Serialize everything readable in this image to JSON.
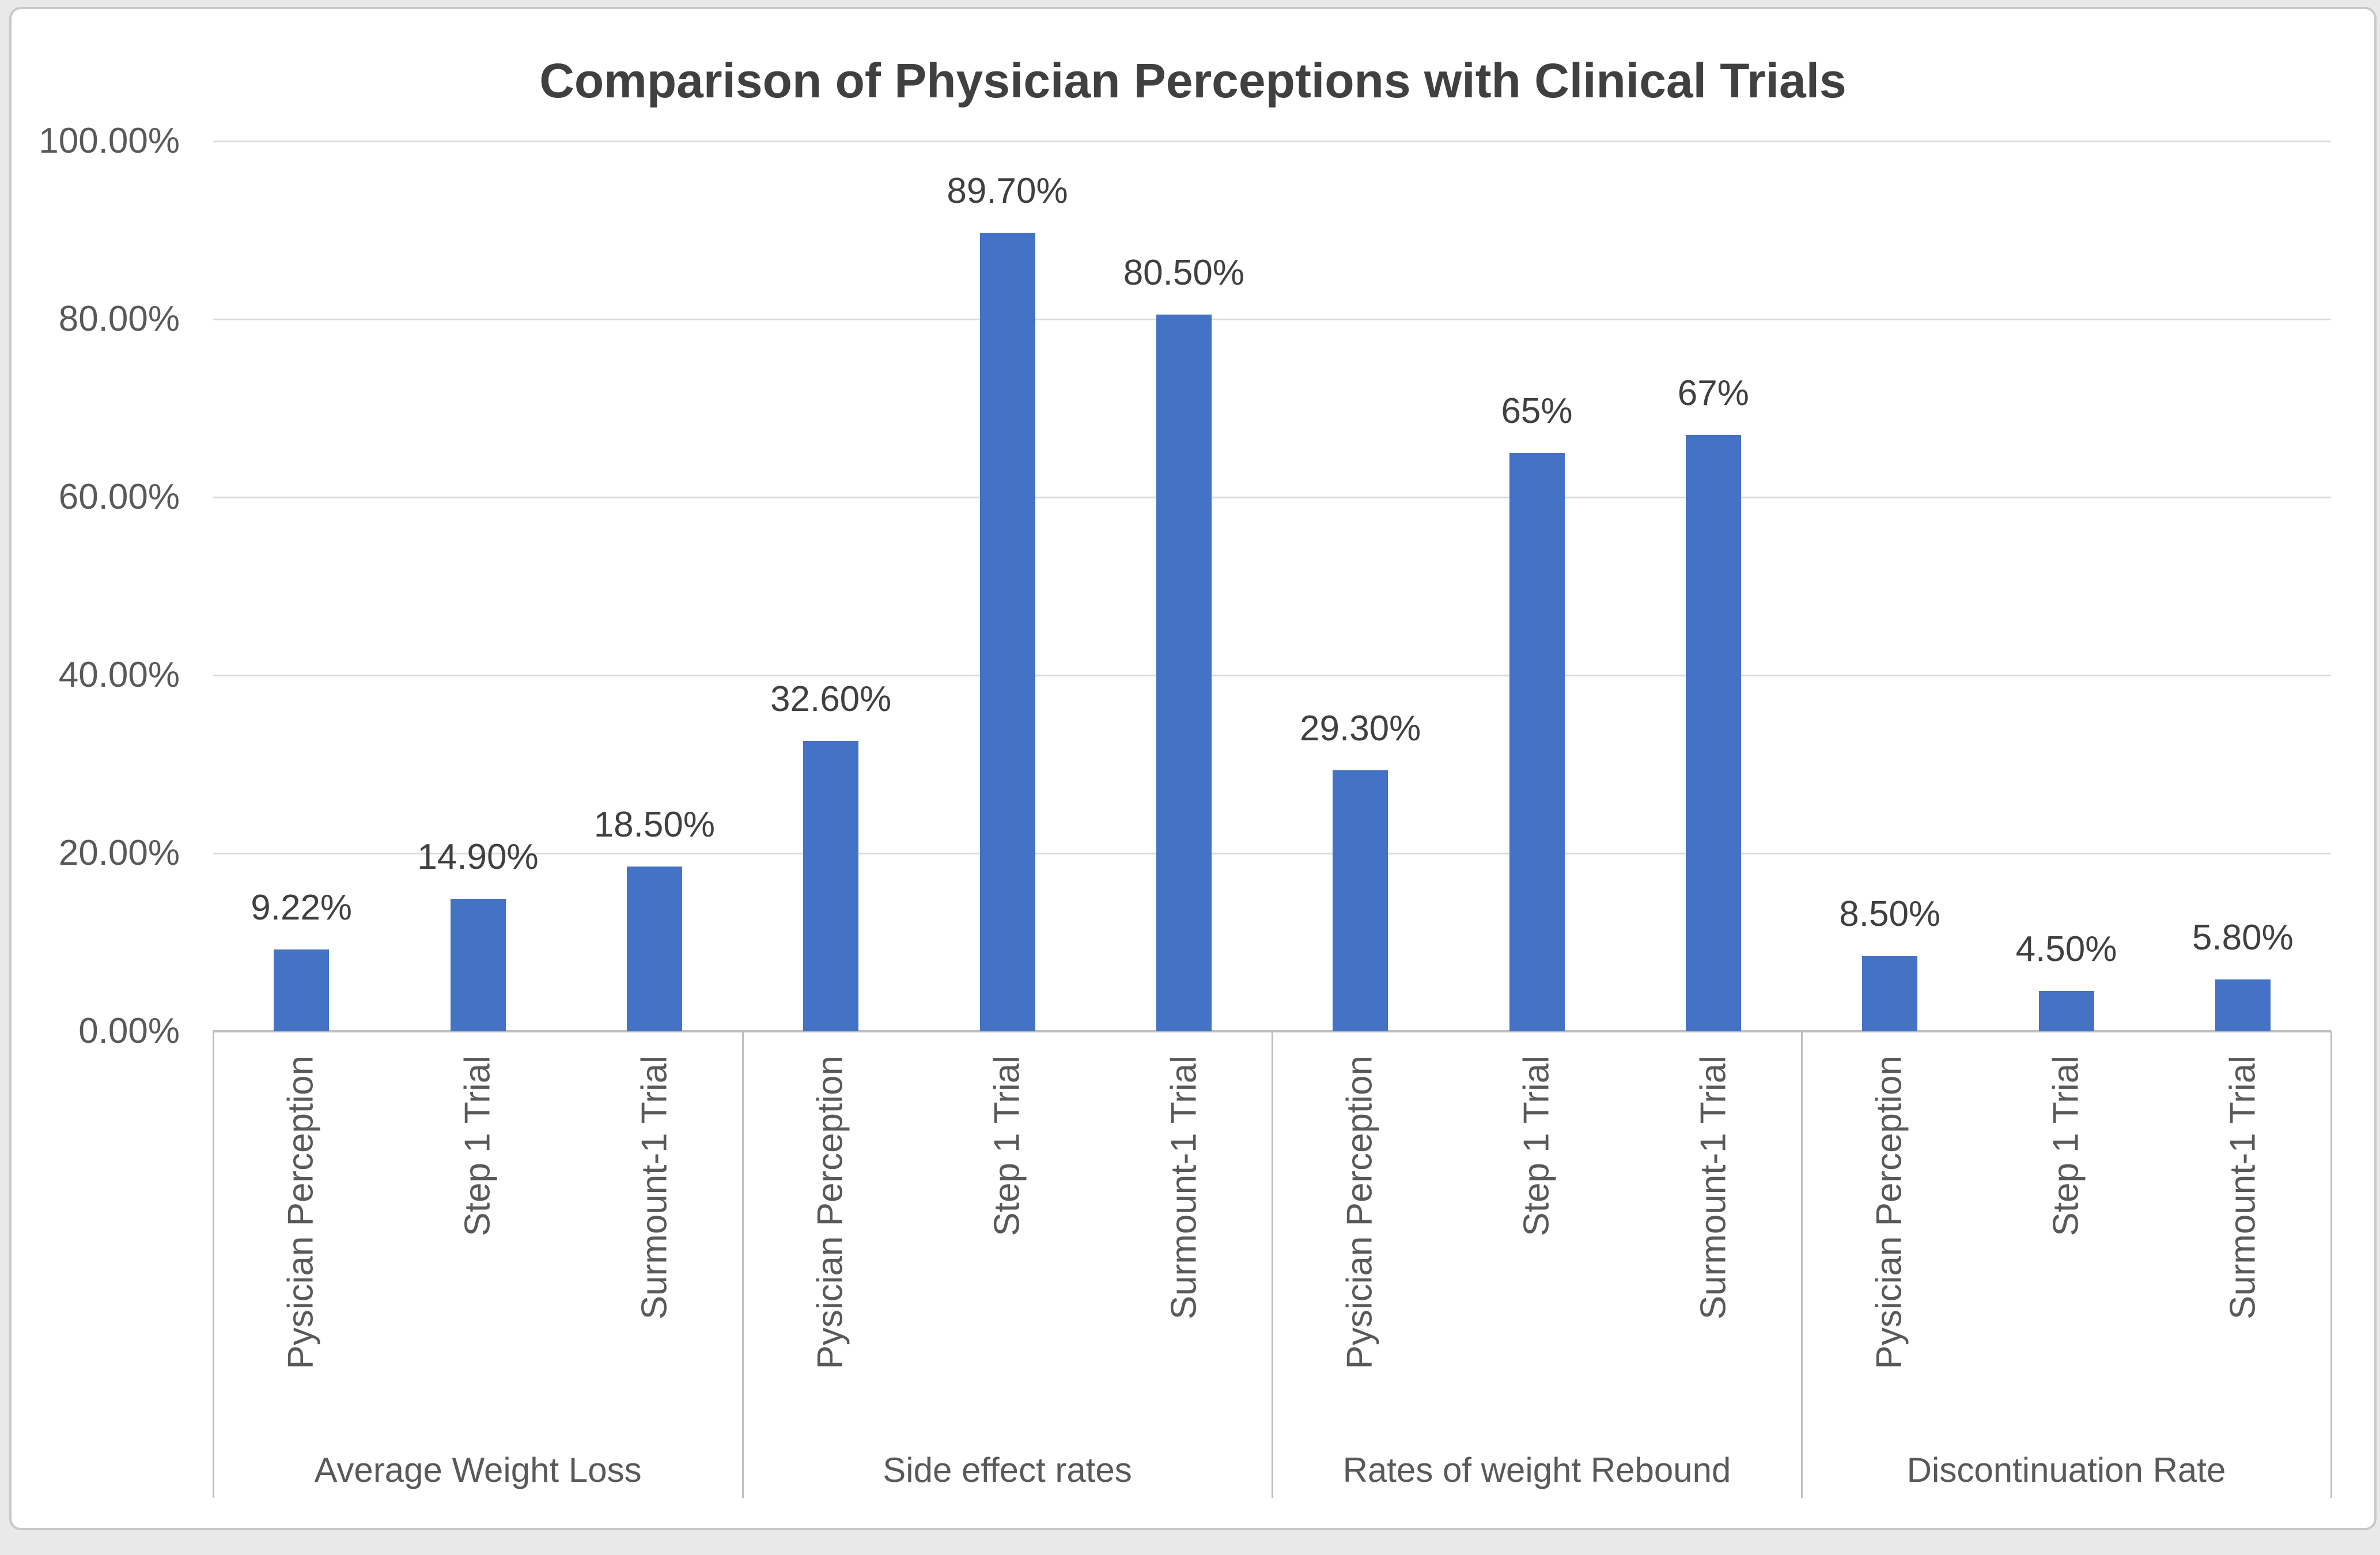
{
  "title": "Comparison of Physician Perceptions with Clinical Trials",
  "colors": {
    "bar": "#4472C4",
    "gridline": "#D9D9D9",
    "axis_line": "#BFBFBF",
    "tick_text": "#595959",
    "label_text": "#404040",
    "title_text": "#404040",
    "frame_border": "#C9C9C9",
    "chart_background": "#FFFFFF",
    "page_background": "#E9E9E9"
  },
  "y_axis": {
    "tick_labels": [
      "100.00%",
      "80.00%",
      "60.00%",
      "40.00%",
      "20.00%",
      "0.00%"
    ]
  },
  "chart_data": {
    "type": "bar",
    "title": "Comparison of Physician Perceptions with Clinical Trials",
    "ylabel": "",
    "xlabel": "",
    "ylim": [
      0,
      100
    ],
    "grid": true,
    "legend_position": "none",
    "bar_color": "#4472C4",
    "categories": [
      "Pysician Perception",
      "Step 1 Trial",
      "Surmount-1 Trial"
    ],
    "groups": [
      {
        "label": "Average Weight Loss",
        "categories": [
          "Pysician Perception",
          "Step 1 Trial",
          "Surmount-1 Trial"
        ],
        "values": [
          9.22,
          14.9,
          18.5
        ],
        "value_labels": [
          "9.22%",
          "14.90%",
          "18.50%"
        ]
      },
      {
        "label": "Side effect rates",
        "categories": [
          "Pysician Perception",
          "Step 1 Trial",
          "Surmount-1 Trial"
        ],
        "values": [
          32.6,
          89.7,
          80.5
        ],
        "value_labels": [
          "32.60%",
          "89.70%",
          "80.50%"
        ]
      },
      {
        "label": "Rates of weight Rebound",
        "categories": [
          "Pysician Perception",
          "Step 1 Trial",
          "Surmount-1 Trial"
        ],
        "values": [
          29.3,
          65,
          67
        ],
        "value_labels": [
          "29.30%",
          "65%",
          "67%"
        ]
      },
      {
        "label": "Discontinuation Rate",
        "categories": [
          "Pysician Perception",
          "Step 1 Trial",
          "Surmount-1 Trial"
        ],
        "values": [
          8.5,
          4.5,
          5.8
        ],
        "value_labels": [
          "8.50%",
          "4.50%",
          "5.80%"
        ]
      }
    ]
  }
}
